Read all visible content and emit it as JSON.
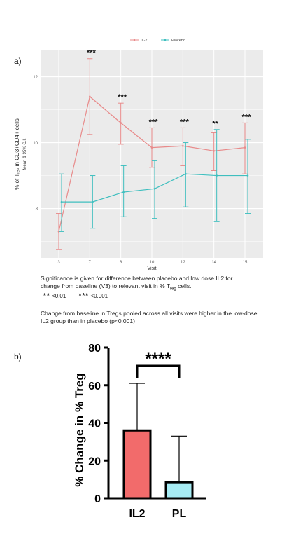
{
  "chart_data": [
    {
      "panel": "a)",
      "type": "line",
      "x": [
        3,
        7,
        8,
        10,
        12,
        14,
        15
      ],
      "xlabel": "Visit",
      "ylabel": "% of Tᵣₑₚ in CD3+CD4+ cells",
      "ylabel_sub": "Mean & 95% C.I.",
      "yticks": [
        8,
        10,
        12
      ],
      "ylim": [
        6.5,
        12.8
      ],
      "grid": true,
      "legend": "top-center",
      "series": [
        {
          "name": "IL-2",
          "color": "#e88a8a",
          "values": [
            7.3,
            11.4,
            10.6,
            9.85,
            9.9,
            9.75,
            9.85
          ],
          "lower": [
            6.75,
            10.25,
            9.95,
            9.25,
            9.3,
            9.15,
            9.05
          ],
          "upper": [
            7.85,
            12.55,
            11.2,
            10.45,
            10.45,
            10.3,
            10.6
          ]
        },
        {
          "name": "Placebo",
          "color": "#3fbfbf",
          "values": [
            8.2,
            8.2,
            8.5,
            8.6,
            9.05,
            9.0,
            9.0
          ],
          "lower": [
            7.3,
            7.4,
            7.75,
            7.7,
            8.05,
            7.6,
            7.85
          ],
          "upper": [
            9.05,
            9.0,
            9.3,
            9.45,
            10.0,
            10.4,
            10.1
          ]
        }
      ],
      "annotations": [
        {
          "x": 7,
          "text": "***"
        },
        {
          "x": 8,
          "text": "***"
        },
        {
          "x": 10,
          "text": "***"
        },
        {
          "x": 12,
          "text": "***"
        },
        {
          "x": 14,
          "text": "**"
        },
        {
          "x": 15,
          "text": "***"
        }
      ]
    },
    {
      "panel": "b)",
      "type": "bar",
      "categories": [
        "IL2",
        "PL"
      ],
      "values": [
        36,
        8.5
      ],
      "error_upper": [
        61,
        33
      ],
      "colors": [
        "#f26b6b",
        "#a7ecf4"
      ],
      "ylabel": "% Change in % Treg",
      "ylim": [
        0,
        80
      ],
      "yticks": [
        0,
        20,
        40,
        60,
        80
      ],
      "significance": "****"
    }
  ],
  "caption": {
    "line1": "Significance is given for difference between placebo and low dose IL2 for",
    "line2a": "change from baseline (V3) to relevant visit in % T",
    "line2sub": "reg",
    "line2b": " cells.",
    "sig1_stars": "**",
    "sig1_text": " <0.01",
    "sig2_stars": "***",
    "sig2_text": " <0.001",
    "note": "Change from baseline in Tregs pooled across all visits were higher in the low-dose IL2 group than in placebo  (p<0.001)"
  }
}
